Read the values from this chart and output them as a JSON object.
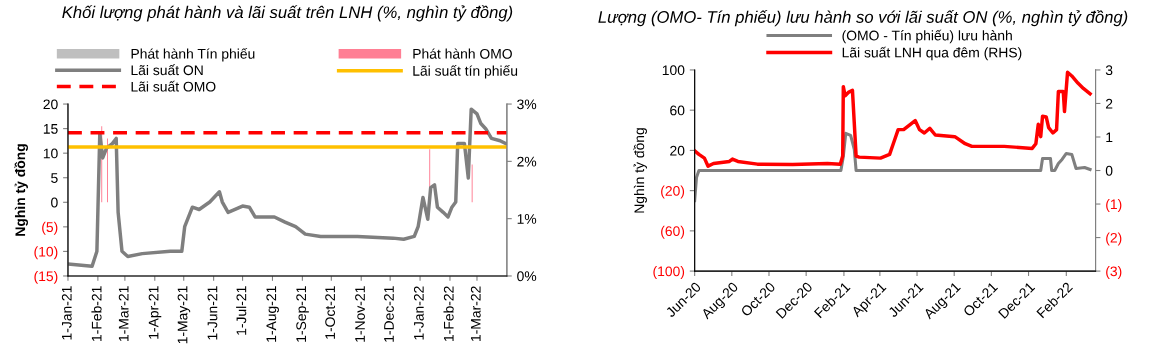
{
  "chart_data": [
    {
      "type": "line",
      "title": "Khối lượng phát hành và lãi suất trên LNH (%, nghìn tỷ đồng)",
      "ylabel": "Nghìn tỷ đồng",
      "xlim": [
        "2021-01-01",
        "2022-04-01"
      ],
      "xticks": [
        {
          "value": "2021-01-01",
          "label": "1-Jan-21"
        },
        {
          "value": "2021-02-01",
          "label": "1-Feb-21"
        },
        {
          "value": "2021-03-01",
          "label": "1-Mar-21"
        },
        {
          "value": "2021-04-01",
          "label": "1-Apr-21"
        },
        {
          "value": "2021-05-01",
          "label": "1-May-21"
        },
        {
          "value": "2021-06-01",
          "label": "1-Jun-21"
        },
        {
          "value": "2021-07-01",
          "label": "1-Jul-21"
        },
        {
          "value": "2021-08-01",
          "label": "1-Aug-21"
        },
        {
          "value": "2021-09-01",
          "label": "1-Sep-21"
        },
        {
          "value": "2021-10-01",
          "label": "1-Oct-21"
        },
        {
          "value": "2021-11-01",
          "label": "1-Nov-21"
        },
        {
          "value": "2021-12-01",
          "label": "1-Dec-21"
        },
        {
          "value": "2022-01-01",
          "label": "1-Jan-22"
        },
        {
          "value": "2022-02-01",
          "label": "1-Feb-22"
        },
        {
          "value": "2022-03-01",
          "label": "1-Mar-22"
        }
      ],
      "ylim": [
        -15,
        20
      ],
      "yticks": [
        {
          "value": -15,
          "label": "(15)"
        },
        {
          "value": -10,
          "label": "(10)"
        },
        {
          "value": -5,
          "label": "(5)"
        },
        0,
        5,
        10,
        15,
        20
      ],
      "y2lim": [
        0,
        3
      ],
      "y2ticks": [
        {
          "value": 0,
          "label": "0%"
        },
        {
          "value": 1,
          "label": "1%"
        },
        {
          "value": 2,
          "label": "2%"
        },
        {
          "value": 3,
          "label": "3%"
        }
      ],
      "legend": "top",
      "grid": false,
      "marker": "none",
      "series": [
        {
          "name": "Phát hành Tín phiếu",
          "type": "bar",
          "color": "#bfbfbf"
        },
        {
          "name": "Phát hành OMO",
          "type": "bar",
          "color": "#ff7f94",
          "x": [
            "2021-02-05",
            "2021-02-11",
            "2022-01-11",
            "2022-02-24"
          ],
          "values": [
            15.5,
            13,
            10.8,
            7.7
          ]
        },
        {
          "name": "Lãi suất ON",
          "axis": "y2",
          "color": "#7f7f7f",
          "x": [
            "2021-01-01",
            "2021-01-26",
            "2021-01-31",
            "2021-02-03",
            "2021-02-06",
            "2021-02-10",
            "2021-02-16",
            "2021-02-20",
            "2021-02-22",
            "2021-02-26",
            "2021-03-04",
            "2021-03-19",
            "2021-04-17",
            "2021-04-29",
            "2021-05-02",
            "2021-05-10",
            "2021-05-17",
            "2021-05-28",
            "2021-06-07",
            "2021-06-10",
            "2021-06-16",
            "2021-07-01",
            "2021-07-08",
            "2021-07-14",
            "2021-08-03",
            "2021-08-14",
            "2021-08-25",
            "2021-09-04",
            "2021-09-20",
            "2021-10-28",
            "2021-12-04",
            "2021-12-15",
            "2021-12-26",
            "2021-12-30",
            "2022-01-04",
            "2022-01-09",
            "2022-01-12",
            "2022-01-16",
            "2022-01-19",
            "2022-01-25",
            "2022-01-30",
            "2022-02-03",
            "2022-02-07",
            "2022-02-09",
            "2022-02-16",
            "2022-02-20",
            "2022-02-23",
            "2022-03-01",
            "2022-03-05",
            "2022-03-10",
            "2022-03-16",
            "2022-03-25",
            "2022-03-31"
          ],
          "values": [
            0.21,
            0.17,
            0.43,
            2.49,
            2.06,
            2.23,
            2.31,
            2.4,
            1.11,
            0.43,
            0.34,
            0.39,
            0.43,
            0.43,
            0.86,
            1.2,
            1.16,
            1.29,
            1.47,
            1.29,
            1.11,
            1.22,
            1.2,
            1.03,
            1.03,
            0.94,
            0.86,
            0.73,
            0.69,
            0.69,
            0.66,
            0.64,
            0.69,
            0.86,
            1.37,
            0.99,
            1.54,
            1.59,
            1.2,
            1.11,
            1.03,
            1.2,
            1.29,
            2.31,
            2.31,
            1.71,
            2.91,
            2.83,
            2.66,
            2.57,
            2.4,
            2.36,
            2.31
          ]
        },
        {
          "name": "Lãi suất tín phiếu",
          "axis": "y2",
          "color": "#ffc000",
          "x": [
            "2021-01-01",
            "2022-04-01"
          ],
          "values": [
            2.25,
            2.25
          ]
        },
        {
          "name": "Lãi suất OMO",
          "axis": "y2",
          "color": "#ff0000",
          "line_style": "dashed",
          "x": [
            "2021-01-01",
            "2022-04-01"
          ],
          "values": [
            2.5,
            2.5
          ]
        }
      ]
    },
    {
      "type": "line",
      "title": "Lượng (OMO- Tín phiếu) lưu hành so với lãi suất ON (%, nghìn tỷ đồng)",
      "ylabel": "Nghìn tỷ đồng",
      "xlim": [
        "2020-06-01",
        "2022-03-21"
      ],
      "xticks": [
        {
          "value": "2020-06-01",
          "label": "Jun-20"
        },
        {
          "value": "2020-08-01",
          "label": "Aug-20"
        },
        {
          "value": "2020-10-01",
          "label": "Oct-20"
        },
        {
          "value": "2020-12-01",
          "label": "Dec-20"
        },
        {
          "value": "2021-02-01",
          "label": "Feb-21"
        },
        {
          "value": "2021-04-01",
          "label": "Apr-21"
        },
        {
          "value": "2021-06-01",
          "label": "Jun-21"
        },
        {
          "value": "2021-08-01",
          "label": "Aug-21"
        },
        {
          "value": "2021-10-01",
          "label": "Oct-21"
        },
        {
          "value": "2021-12-01",
          "label": "Dec-21"
        },
        {
          "value": "2022-02-01",
          "label": "Feb-22"
        }
      ],
      "ylim": [
        -100,
        100
      ],
      "yticks": [
        {
          "value": -100,
          "label": "(100)"
        },
        {
          "value": -60,
          "label": "(60)"
        },
        {
          "value": -20,
          "label": "(20)"
        },
        20,
        60,
        100
      ],
      "y2lim": [
        -3,
        3
      ],
      "y2ticks": [
        {
          "value": -3,
          "label": "(3)"
        },
        {
          "value": -2,
          "label": "(2)"
        },
        {
          "value": -1,
          "label": "(1)"
        },
        0,
        1,
        2,
        3
      ],
      "legend": "top",
      "grid": false,
      "marker": "none",
      "series": [
        {
          "name": "(OMO - Tín phiếu) lưu hành",
          "color": "#7f7f7f",
          "x": [
            "2020-06-01",
            "2020-06-04",
            "2020-06-08",
            "2021-01-27",
            "2021-01-31",
            "2021-02-04",
            "2021-02-12",
            "2021-02-18",
            "2021-02-21",
            "2021-12-21",
            "2021-12-24",
            "2022-01-06",
            "2022-01-08",
            "2022-01-13",
            "2022-01-19",
            "2022-01-25",
            "2022-02-01",
            "2022-02-10",
            "2022-02-17",
            "2022-03-03",
            "2022-03-12"
          ],
          "values": [
            -30,
            -7,
            0,
            0,
            14,
            37,
            35,
            21,
            0,
            0,
            12,
            12,
            0,
            0,
            7,
            11,
            17,
            16,
            2,
            3,
            1
          ]
        },
        {
          "name": "Lãi suất LNH qua đêm (RHS)",
          "axis": "y2",
          "color": "#ff0000",
          "x": [
            "2020-06-01",
            "2020-06-08",
            "2020-06-17",
            "2020-06-23",
            "2020-07-02",
            "2020-07-28",
            "2020-08-02",
            "2020-08-11",
            "2020-09-12",
            "2020-11-09",
            "2021-01-05",
            "2021-01-26",
            "2021-01-30",
            "2021-01-31",
            "2021-02-03",
            "2021-02-09",
            "2021-02-15",
            "2021-02-21",
            "2021-02-26",
            "2021-04-02",
            "2021-04-17",
            "2021-04-24",
            "2021-05-01",
            "2021-05-10",
            "2021-05-29",
            "2021-06-05",
            "2021-06-13",
            "2021-06-22",
            "2021-07-01",
            "2021-08-02",
            "2021-08-19",
            "2021-08-30",
            "2021-10-22",
            "2021-12-07",
            "2021-12-13",
            "2021-12-17",
            "2021-12-21",
            "2021-12-24",
            "2021-12-30",
            "2022-01-03",
            "2022-01-10",
            "2022-01-16",
            "2022-01-19",
            "2022-01-27",
            "2022-01-29",
            "2022-02-03",
            "2022-02-10",
            "2022-02-20",
            "2022-03-01",
            "2022-03-12"
          ],
          "values": [
            0.59,
            0.48,
            0.37,
            0.13,
            0.21,
            0.27,
            0.34,
            0.27,
            0.19,
            0.18,
            0.21,
            0.19,
            0.43,
            2.5,
            2.23,
            2.34,
            2.39,
            0.43,
            0.4,
            0.37,
            0.48,
            0.85,
            1.22,
            1.22,
            1.49,
            1.22,
            1.12,
            1.26,
            1.06,
            1.01,
            0.8,
            0.72,
            0.72,
            0.66,
            0.8,
            1.38,
            1.01,
            1.62,
            1.6,
            1.28,
            1.12,
            1.22,
            2.36,
            2.36,
            1.76,
            2.93,
            2.82,
            2.61,
            2.45,
            2.29
          ]
        }
      ]
    }
  ]
}
